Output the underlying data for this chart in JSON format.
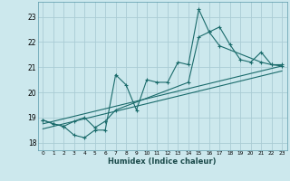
{
  "xlabel": "Humidex (Indice chaleur)",
  "bg_color": "#cce8ed",
  "grid_color": "#aaccd4",
  "line_color": "#1a6b6b",
  "spine_color": "#5a9aaa",
  "xlim": [
    -0.5,
    23.5
  ],
  "ylim": [
    17.7,
    23.6
  ],
  "yticks": [
    18,
    19,
    20,
    21,
    22,
    23
  ],
  "xticks": [
    0,
    1,
    2,
    3,
    4,
    5,
    6,
    7,
    8,
    9,
    10,
    11,
    12,
    13,
    14,
    15,
    16,
    17,
    18,
    19,
    20,
    21,
    22,
    23
  ],
  "series1_x": [
    0,
    1,
    2,
    3,
    4,
    5,
    6,
    7,
    8,
    9,
    10,
    11,
    12,
    13,
    14,
    15,
    16,
    17,
    18,
    19,
    20,
    21,
    22,
    23
  ],
  "series1_y": [
    18.9,
    18.75,
    18.65,
    18.3,
    18.2,
    18.5,
    18.5,
    20.7,
    20.3,
    19.3,
    20.5,
    20.4,
    20.4,
    21.2,
    21.1,
    23.3,
    22.4,
    22.6,
    21.9,
    21.3,
    21.2,
    21.6,
    21.1,
    21.1
  ],
  "series2_x": [
    0,
    1,
    2,
    3,
    4,
    5,
    6,
    7,
    14,
    15,
    16,
    17,
    21,
    22,
    23
  ],
  "series2_y": [
    18.9,
    18.75,
    18.65,
    18.85,
    19.0,
    18.6,
    18.85,
    19.3,
    20.4,
    22.2,
    22.4,
    21.85,
    21.2,
    21.1,
    21.05
  ],
  "line1_x": [
    0,
    23
  ],
  "line1_y": [
    18.75,
    21.05
  ],
  "line2_x": [
    0,
    23
  ],
  "line2_y": [
    18.55,
    20.85
  ]
}
